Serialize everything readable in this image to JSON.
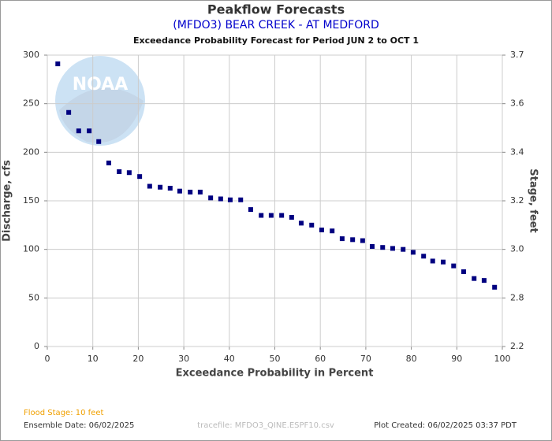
{
  "chart_data": {
    "type": "scatter",
    "title": "Peakflow Forecasts",
    "subtitle": "(MFDO3) BEAR CREEK - AT MEDFORD",
    "subtitle2": "Exceedance Probability Forecast for Period JUN 2 to OCT 1",
    "xlabel": "Exceedance Probability in Percent",
    "ylabel": "Discharge, cfs",
    "y2label": "Stage, feet",
    "xlim": [
      0,
      100
    ],
    "xticks": [
      0,
      10,
      20,
      30,
      40,
      50,
      60,
      70,
      80,
      90,
      100
    ],
    "ylim": [
      0,
      300
    ],
    "yticks": [
      0,
      50,
      100,
      150,
      200,
      250,
      300
    ],
    "y2lim": [
      2.2,
      3.7
    ],
    "y2ticks": [
      2.2,
      2.8,
      {
        "value": 3,
        "label": "3.0"
      },
      3.2,
      3.4,
      3.6,
      3.7
    ],
    "grid": true,
    "series": [
      {
        "name": "Peakflow",
        "color": "#000080",
        "x": [
          2.3,
          4.7,
          6.9,
          9.2,
          11.3,
          13.5,
          15.8,
          18.0,
          20.3,
          22.5,
          24.8,
          27.0,
          29.1,
          31.4,
          33.6,
          35.9,
          38.1,
          40.2,
          42.5,
          44.7,
          47.0,
          49.2,
          51.5,
          53.7,
          55.8,
          58.1,
          60.3,
          62.6,
          64.8,
          67.1,
          69.3,
          71.4,
          73.7,
          75.9,
          78.2,
          80.4,
          82.7,
          84.7,
          87.0,
          89.3,
          91.5,
          93.8,
          96.0,
          98.3
        ],
        "values": [
          291,
          241,
          222,
          222,
          211,
          189,
          180,
          179,
          175,
          165,
          164,
          163,
          160,
          159,
          159,
          153,
          152,
          151,
          151,
          141,
          135,
          135,
          135,
          133,
          127,
          125,
          120,
          119,
          111,
          110,
          109,
          103,
          102,
          101,
          100,
          97,
          93,
          88,
          87,
          83,
          77,
          70,
          68,
          61
        ]
      }
    ],
    "footer": {
      "flood_stage": "Flood Stage: 10 feet",
      "ensemble_date": "Ensemble Date: 06/02/2025",
      "tracefile": "tracefile: MFDO3_QINE.ESPF10.csv",
      "plot_created": "Plot Created: 06/02/2025 03:37 PDT"
    }
  }
}
